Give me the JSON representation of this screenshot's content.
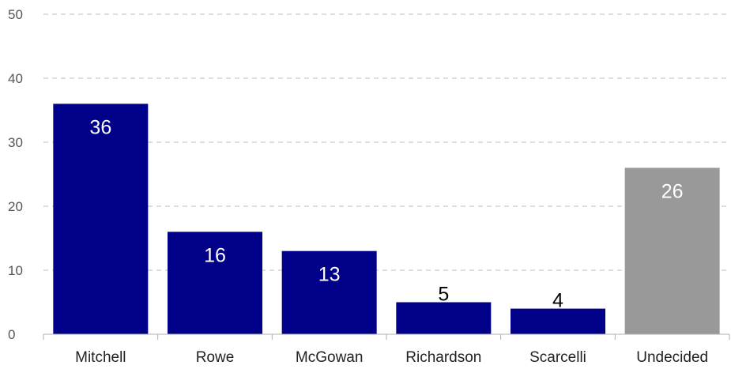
{
  "chart_data": {
    "type": "bar",
    "categories": [
      "Mitchell",
      "Rowe",
      "McGowan",
      "Richardson",
      "Scarcelli",
      "Undecided"
    ],
    "values": [
      36,
      16,
      13,
      5,
      4,
      26
    ],
    "bar_colors": [
      "#000088",
      "#000088",
      "#000088",
      "#000088",
      "#000088",
      "#999999"
    ],
    "ylim": [
      0,
      50
    ],
    "yticks": [
      0,
      10,
      20,
      30,
      40,
      50
    ],
    "title": "",
    "xlabel": "",
    "ylabel": "",
    "grid": true,
    "legend": "none"
  }
}
